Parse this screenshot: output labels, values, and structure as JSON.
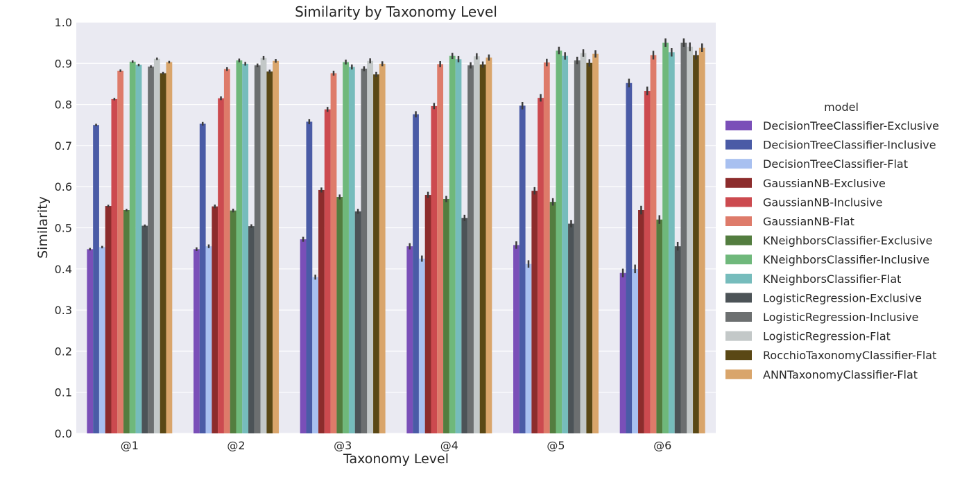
{
  "chart_data": {
    "type": "bar",
    "title": "Similarity by Taxonomy Level",
    "xlabel": "Taxonomy Level",
    "ylabel": "Similarity",
    "ylim": [
      0,
      1.0
    ],
    "yticks": [
      "0.0",
      "0.1",
      "0.2",
      "0.3",
      "0.4",
      "0.5",
      "0.6",
      "0.7",
      "0.8",
      "0.9",
      "1.0"
    ],
    "grid": true,
    "legend_title": "model",
    "legend_position": "right",
    "categories": [
      "@1",
      "@2",
      "@3",
      "@4",
      "@5",
      "@6"
    ],
    "series": [
      {
        "name": "DecisionTreeClassifier-Exclusive",
        "color": "#7a4fb8",
        "values": [
          0.448,
          0.448,
          0.472,
          0.455,
          0.458,
          0.39
        ]
      },
      {
        "name": "DecisionTreeClassifier-Inclusive",
        "color": "#4a5ba6",
        "values": [
          0.75,
          0.753,
          0.758,
          0.776,
          0.797,
          0.852
        ]
      },
      {
        "name": "DecisionTreeClassifier-Flat",
        "color": "#a8c0f0",
        "values": [
          0.453,
          0.455,
          0.38,
          0.425,
          0.412,
          0.4
        ]
      },
      {
        "name": "GaussianNB-Exclusive",
        "color": "#8c2c2c",
        "values": [
          0.553,
          0.552,
          0.592,
          0.58,
          0.59,
          0.543
        ]
      },
      {
        "name": "GaussianNB-Inclusive",
        "color": "#cc4a4f",
        "values": [
          0.813,
          0.815,
          0.788,
          0.796,
          0.816,
          0.833
        ]
      },
      {
        "name": "GaussianNB-Flat",
        "color": "#de7b6a",
        "values": [
          0.882,
          0.886,
          0.876,
          0.898,
          0.902,
          0.92
        ]
      },
      {
        "name": "KNeighborsClassifier-Exclusive",
        "color": "#537d3f",
        "values": [
          0.543,
          0.542,
          0.575,
          0.57,
          0.563,
          0.52
        ]
      },
      {
        "name": "KNeighborsClassifier-Inclusive",
        "color": "#6fb87b",
        "values": [
          0.904,
          0.907,
          0.903,
          0.918,
          0.931,
          0.95
        ]
      },
      {
        "name": "KNeighborsClassifier-Flat",
        "color": "#76bcbc",
        "values": [
          0.896,
          0.899,
          0.891,
          0.91,
          0.918,
          0.927
        ]
      },
      {
        "name": "LogisticRegression-Exclusive",
        "color": "#4c5357",
        "values": [
          0.505,
          0.504,
          0.54,
          0.524,
          0.51,
          0.455
        ]
      },
      {
        "name": "LogisticRegression-Inclusive",
        "color": "#6c6f70",
        "values": [
          0.892,
          0.895,
          0.887,
          0.895,
          0.907,
          0.95
        ]
      },
      {
        "name": "LogisticRegression-Flat",
        "color": "#c3c8c8",
        "values": [
          0.911,
          0.913,
          0.906,
          0.917,
          0.925,
          0.94
        ]
      },
      {
        "name": "RocchioTaxonomyClassifier-Flat",
        "color": "#5a4815",
        "values": [
          0.876,
          0.88,
          0.873,
          0.897,
          0.901,
          0.92
        ]
      },
      {
        "name": "ANNTaxonomyClassifier-Flat",
        "color": "#d9a56b",
        "values": [
          0.903,
          0.906,
          0.899,
          0.914,
          0.923,
          0.938
        ]
      }
    ]
  }
}
